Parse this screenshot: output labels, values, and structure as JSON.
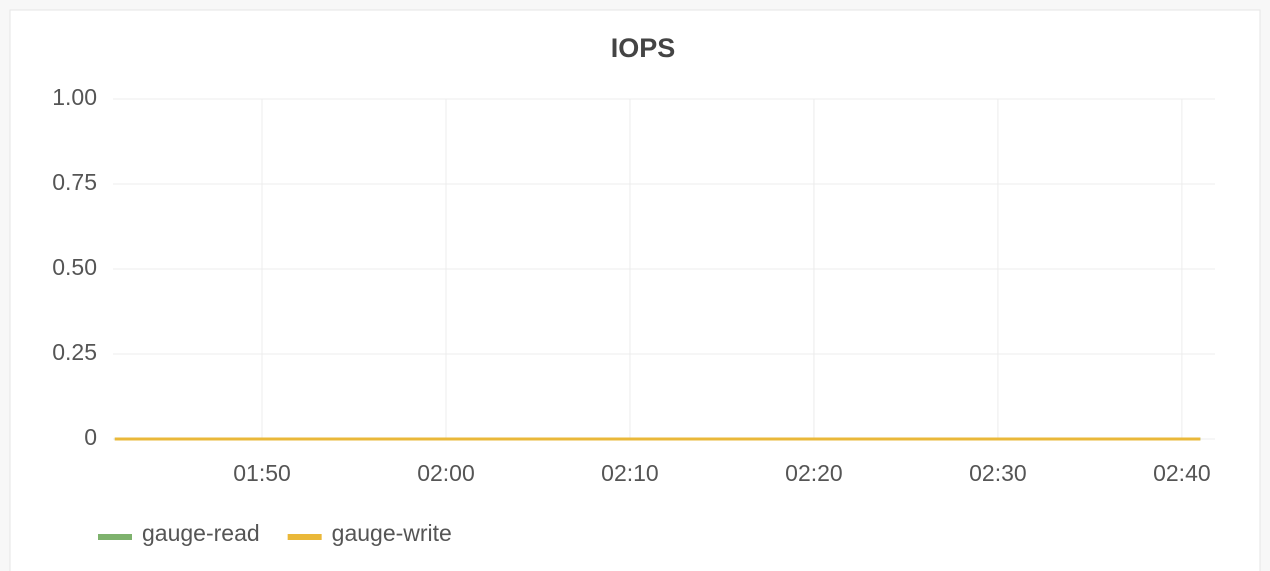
{
  "chart_data": {
    "type": "line",
    "title": "IOPS",
    "x": [
      102,
      161
    ],
    "series": [
      {
        "name": "gauge-read",
        "color": "#7eb26d",
        "values": [
          0,
          0
        ]
      },
      {
        "name": "gauge-write",
        "color": "#eab839",
        "values": [
          0,
          0
        ]
      }
    ],
    "xlim": [
      101.9,
      161.8
    ],
    "xticks": [
      {
        "value": 110,
        "label": "01:50"
      },
      {
        "value": 120,
        "label": "02:00"
      },
      {
        "value": 130,
        "label": "02:10"
      },
      {
        "value": 140,
        "label": "02:20"
      },
      {
        "value": 150,
        "label": "02:30"
      },
      {
        "value": 160,
        "label": "02:40"
      }
    ],
    "ylim": [
      0,
      1
    ],
    "yticks": [
      0,
      {
        "value": 0.25,
        "label": "0.25"
      },
      {
        "value": 0.5,
        "label": "0.50"
      },
      {
        "value": 0.75,
        "label": "0.75"
      },
      {
        "value": 1,
        "label": "1.00"
      }
    ],
    "grid": true,
    "legend": "bottom"
  }
}
